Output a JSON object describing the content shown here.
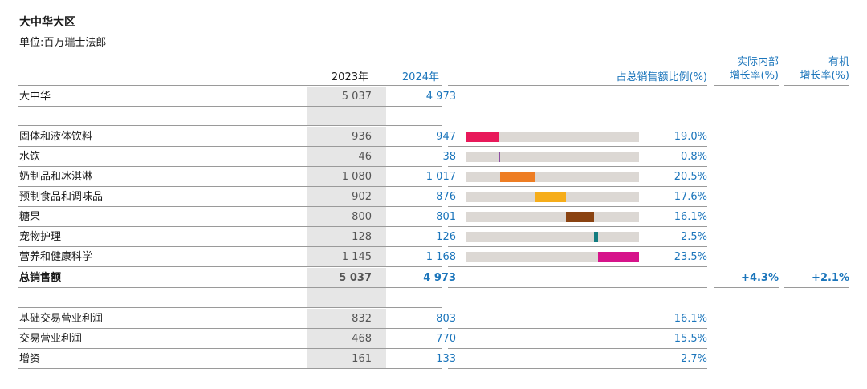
{
  "title": "大中华大区",
  "unit": "单位:百万瑞士法郎",
  "headers": {
    "year_2023": "2023年",
    "year_2024": "2024年",
    "share": "占总销售额比例(%)",
    "rig_line1": "实际内部",
    "rig_line2": "增长率(%)",
    "og_line1": "有机",
    "og_line2": "增长率(%)"
  },
  "region_row": {
    "label": "大中华",
    "v2023": "5 037",
    "v2024": "4 973"
  },
  "category_rows": [
    {
      "label": "固体和液体饮料",
      "v2023": "936",
      "v2024": "947",
      "share_text": "19.0%",
      "share": 19.0,
      "color": "#e8195a"
    },
    {
      "label": "水饮",
      "v2023": "46",
      "v2024": "38",
      "share_text": "0.8%",
      "share": 0.8,
      "color": "#8e4fa3"
    },
    {
      "label": "奶制品和冰淇淋",
      "v2023": "1 080",
      "v2024": "1 017",
      "share_text": "20.5%",
      "share": 20.5,
      "color": "#ee7d23"
    },
    {
      "label": "预制食品和调味品",
      "v2023": "902",
      "v2024": "876",
      "share_text": "17.6%",
      "share": 17.6,
      "color": "#f6ad1a"
    },
    {
      "label": "糖果",
      "v2023": "800",
      "v2024": "801",
      "share_text": "16.1%",
      "share": 16.1,
      "color": "#8a4312"
    },
    {
      "label": "宠物护理",
      "v2023": "128",
      "v2024": "126",
      "share_text": "2.5%",
      "share": 2.5,
      "color": "#127c80"
    },
    {
      "label": "营养和健康科学",
      "v2023": "1 145",
      "v2024": "1 168",
      "share_text": "23.5%",
      "share": 23.5,
      "color": "#d6138a"
    }
  ],
  "total_row": {
    "label": "总销售额",
    "v2023": "5 037",
    "v2024": "4 973",
    "rig": "+4.3%",
    "og": "+2.1%"
  },
  "profit_rows": [
    {
      "label": "基础交易营业利润",
      "v2023": "832",
      "v2024": "803",
      "share_text": "16.1%"
    },
    {
      "label": "交易营业利润",
      "v2023": "468",
      "v2024": "770",
      "share_text": "15.5%"
    },
    {
      "label": "增资",
      "v2023": "161",
      "v2024": "133",
      "share_text": "2.7%"
    }
  ]
}
